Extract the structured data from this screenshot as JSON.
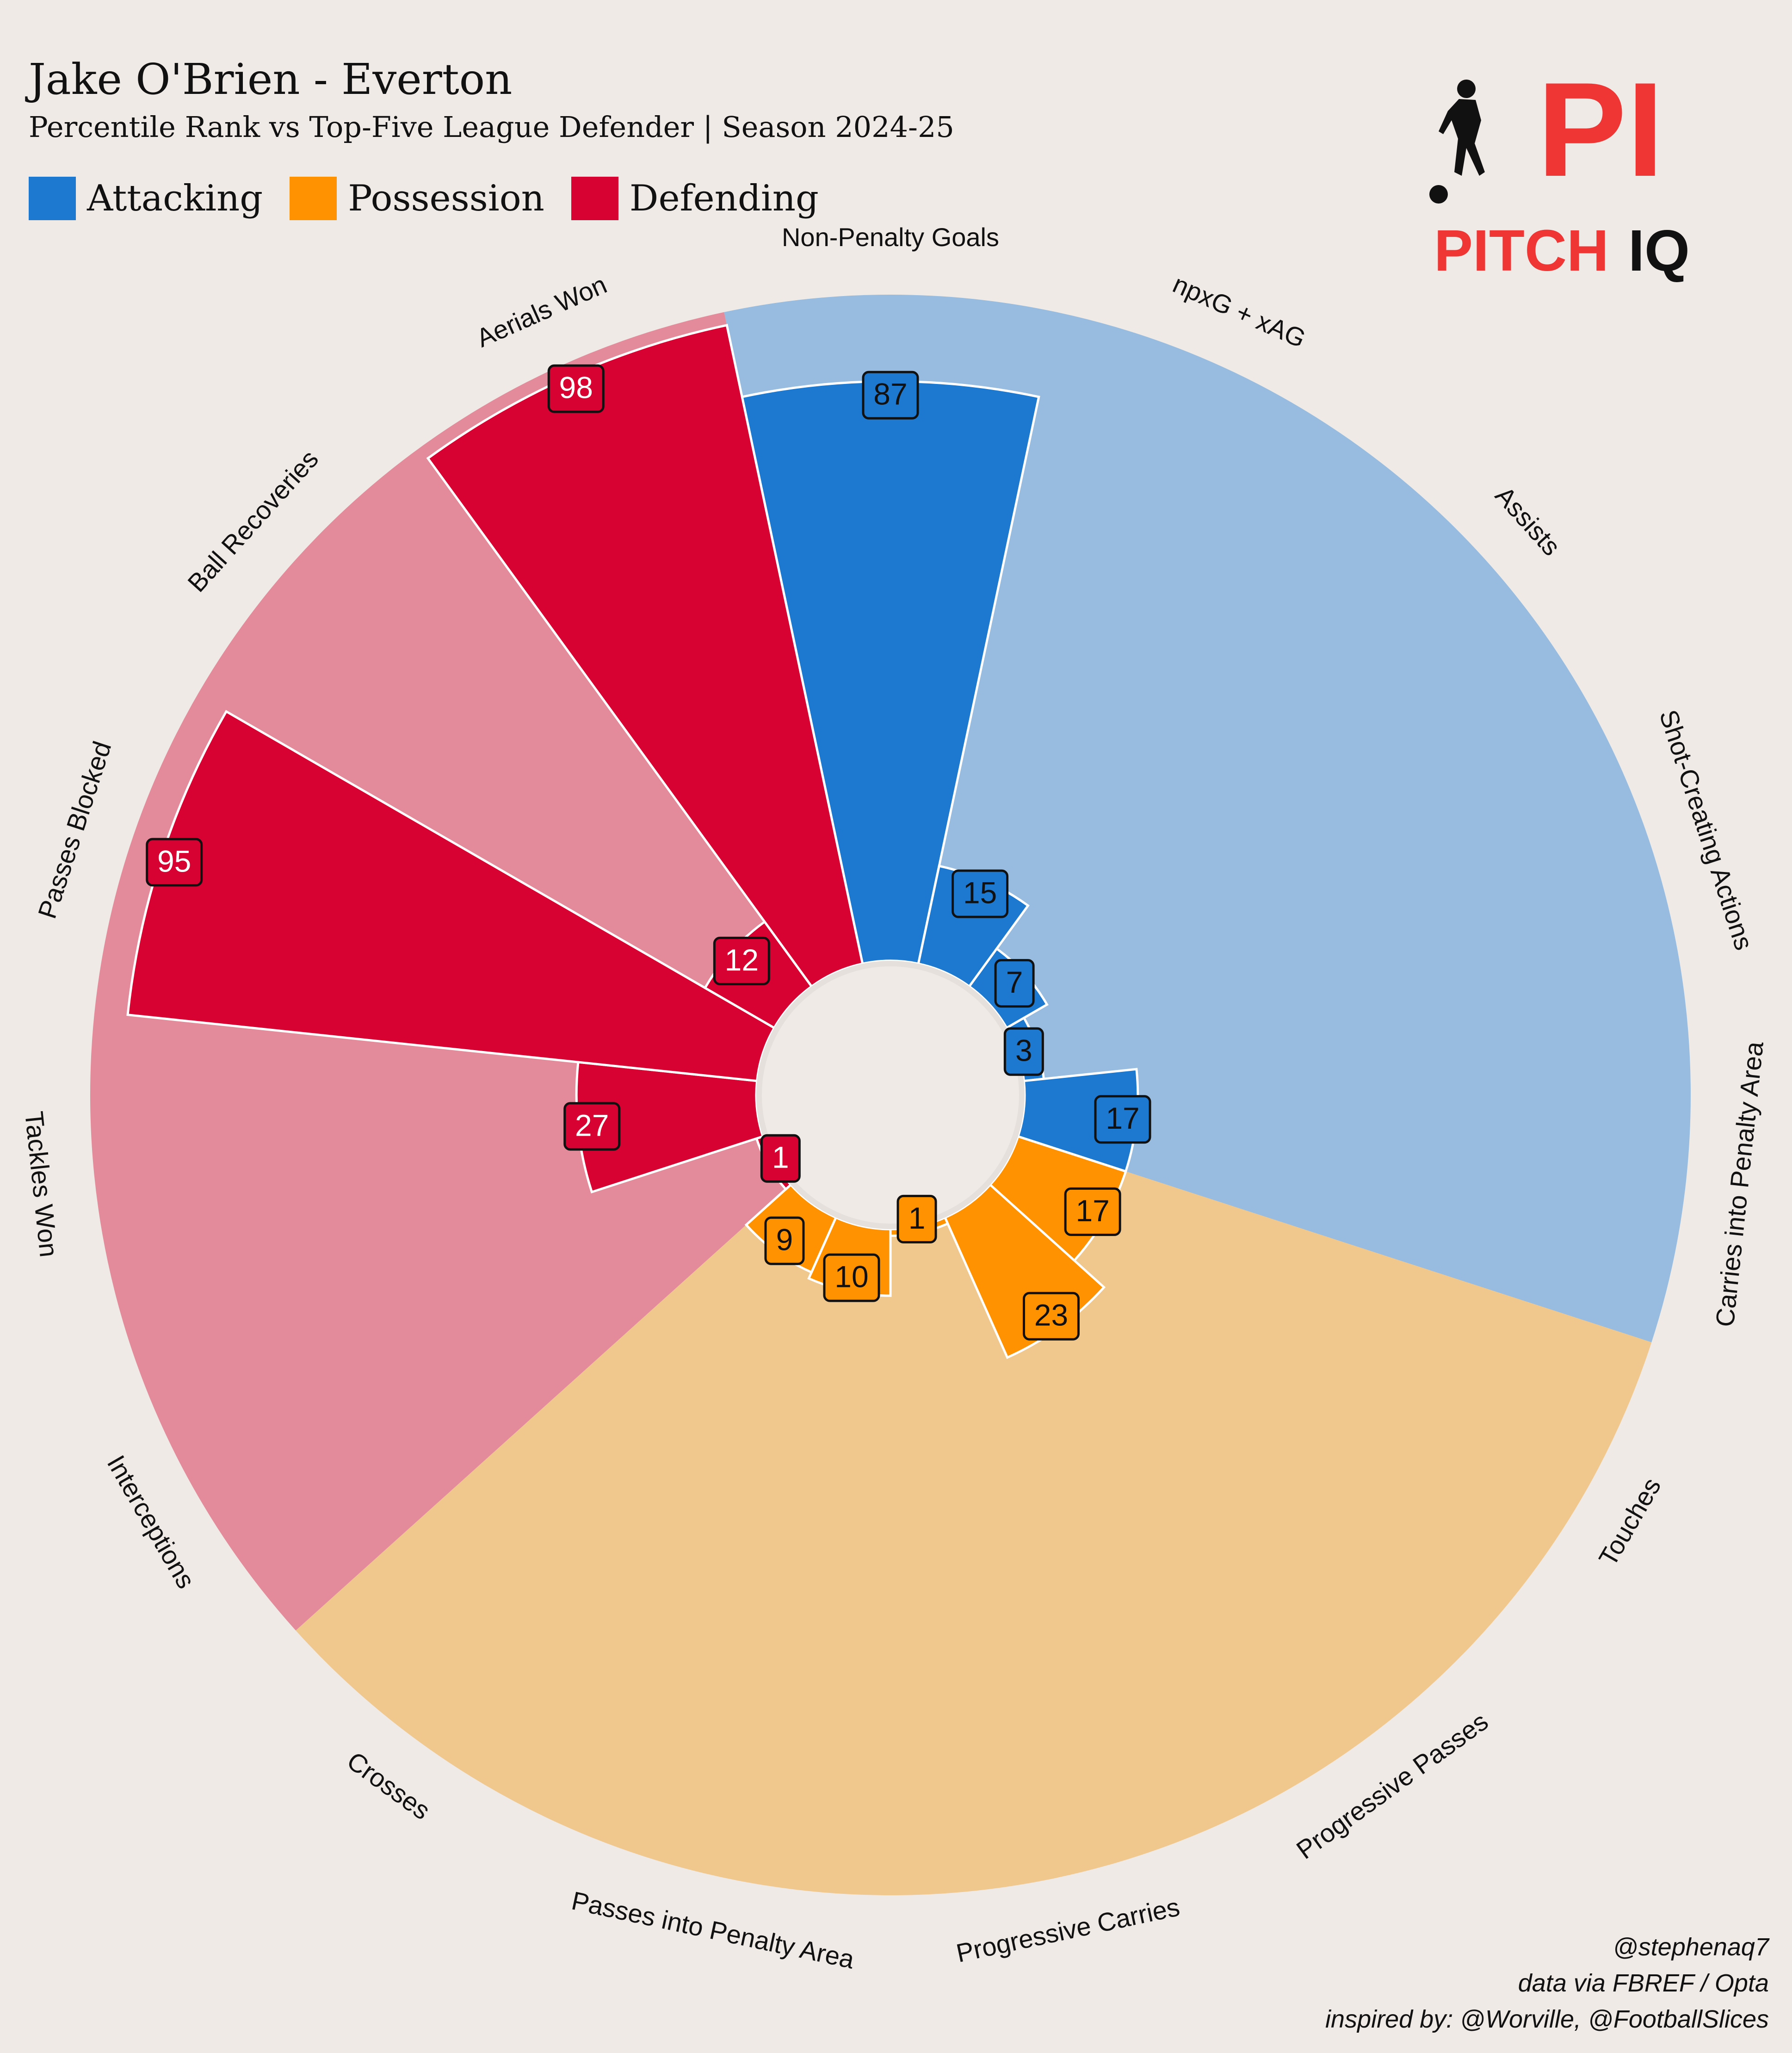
{
  "header": {
    "title": "Jake O'Brien - Everton",
    "subtitle": "Percentile Rank vs Top-Five League Defender | Season 2024-25"
  },
  "legend": [
    {
      "label": "Attacking",
      "color": "#1c79cf"
    },
    {
      "label": "Possession",
      "color": "#ff9200"
    },
    {
      "label": "Defending",
      "color": "#d70232"
    }
  ],
  "logo": {
    "mark": "PI",
    "word1": "PITCH",
    "word2": "IQ",
    "color": "#f03535",
    "icon": "footballer-silhouette-icon"
  },
  "credits": {
    "handle": "@stephenaq7",
    "source": "data via FBREF / Opta",
    "inspired": "inspired by: @Worville, @FootballSlices"
  },
  "chart_data": {
    "type": "polar-bar",
    "scale": "percentile",
    "range": [
      0,
      100
    ],
    "groups": [
      {
        "name": "Attacking",
        "color": "#1c79cf",
        "background": "#97bcdf"
      },
      {
        "name": "Possession",
        "color": "#ff9200",
        "background": "#f0c78c"
      },
      {
        "name": "Defending",
        "color": "#d70232",
        "background": "#e48b9b"
      }
    ],
    "metrics": [
      {
        "label": "Non-Penalty Goals",
        "value": 87,
        "group": "Attacking"
      },
      {
        "label": "npxG + xAG",
        "value": 15,
        "group": "Attacking"
      },
      {
        "label": "Assists",
        "value": 7,
        "group": "Attacking"
      },
      {
        "label": "Shot-Creating Actions",
        "value": 3,
        "group": "Attacking"
      },
      {
        "label": "Carries into Penalty Area",
        "value": 17,
        "group": "Attacking"
      },
      {
        "label": "Touches",
        "value": 17,
        "group": "Possession"
      },
      {
        "label": "Progressive Passes",
        "value": 23,
        "group": "Possession"
      },
      {
        "label": "Progressive Carries",
        "value": 1,
        "group": "Possession"
      },
      {
        "label": "Passes into Penalty Area",
        "value": 10,
        "group": "Possession"
      },
      {
        "label": "Crosses",
        "value": 9,
        "group": "Possession"
      },
      {
        "label": "Interceptions",
        "value": 1,
        "group": "Defending"
      },
      {
        "label": "Tackles Won",
        "value": 27,
        "group": "Defending"
      },
      {
        "label": "Passes Blocked",
        "value": 95,
        "group": "Defending"
      },
      {
        "label": "Ball Recoveries",
        "value": 12,
        "group": "Defending"
      },
      {
        "label": "Aerials Won",
        "value": 98,
        "group": "Defending"
      }
    ]
  }
}
